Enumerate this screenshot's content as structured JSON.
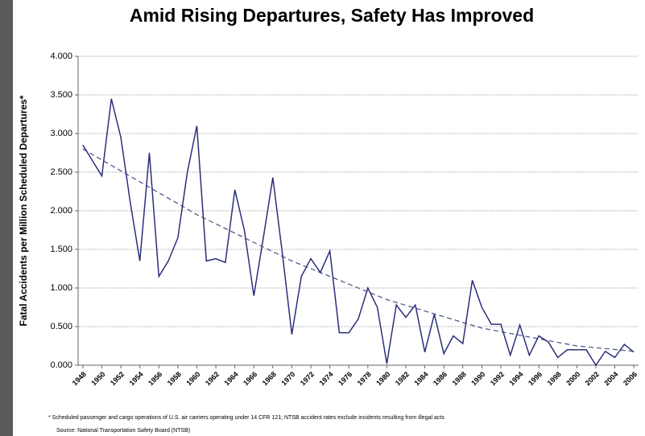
{
  "chart_data": {
    "type": "line",
    "title": "Amid Rising Departures, Safety Has Improved",
    "y_label": "Fatal Accidents per Million Scheduled Departures*",
    "footnote": "* Scheduled passenger and cargo operations of U.S. air carriers operating under 14 CFR 121; NTSB accident rates exclude incidents resulting from illegal acts",
    "source": "Source: National Transportation Safety Board (NTSB)",
    "x": [
      1948,
      1949,
      1950,
      1951,
      1952,
      1953,
      1954,
      1955,
      1956,
      1957,
      1958,
      1959,
      1960,
      1961,
      1962,
      1963,
      1964,
      1965,
      1966,
      1967,
      1968,
      1969,
      1970,
      1971,
      1972,
      1973,
      1974,
      1975,
      1976,
      1977,
      1978,
      1979,
      1980,
      1981,
      1982,
      1983,
      1984,
      1985,
      1986,
      1987,
      1988,
      1989,
      1990,
      1991,
      1992,
      1993,
      1994,
      1995,
      1996,
      1997,
      1998,
      1999,
      2000,
      2001,
      2002,
      2003,
      2004,
      2005,
      2006
    ],
    "series": [
      {
        "color": "#2b2f7a",
        "values": [
          2.85,
          2.65,
          2.45,
          3.45,
          2.95,
          2.1,
          1.35,
          2.75,
          1.15,
          1.35,
          1.65,
          2.5,
          3.1,
          1.35,
          1.38,
          1.33,
          2.27,
          1.75,
          0.9,
          1.65,
          2.43,
          1.45,
          0.4,
          1.15,
          1.38,
          1.2,
          1.48,
          0.42,
          0.42,
          0.6,
          1.0,
          0.75,
          0.02,
          0.78,
          0.62,
          0.78,
          0.17,
          0.66,
          0.15,
          0.38,
          0.28,
          1.1,
          0.75,
          0.53,
          0.53,
          0.13,
          0.52,
          0.13,
          0.38,
          0.3,
          0.1,
          0.2,
          0.2,
          0.2,
          0.0,
          0.18,
          0.1,
          0.27,
          0.17
        ]
      }
    ],
    "trendline": {
      "color": "#555a8a",
      "x": [
        1948,
        1960,
        1970,
        1980,
        1990,
        2000,
        2006
      ],
      "values": [
        2.8,
        1.95,
        1.35,
        0.85,
        0.48,
        0.25,
        0.18
      ]
    },
    "xlim": [
      1947.5,
      2006.5
    ],
    "xticks": [
      1948,
      1950,
      1952,
      1954,
      1956,
      1958,
      1960,
      1962,
      1964,
      1966,
      1968,
      1970,
      1972,
      1974,
      1976,
      1978,
      1980,
      1982,
      1984,
      1986,
      1988,
      1990,
      1992,
      1994,
      1996,
      1998,
      2000,
      2002,
      2004,
      2006
    ],
    "ylim": [
      0,
      4
    ],
    "yticks": [
      {
        "value": 0,
        "label": "0.000"
      },
      {
        "value": 0.5,
        "label": "0.500"
      },
      {
        "value": 1,
        "label": "1.000"
      },
      {
        "value": 1.5,
        "label": "1.500"
      },
      {
        "value": 2,
        "label": "2.000"
      },
      {
        "value": 2.5,
        "label": "2.500"
      },
      {
        "value": 3,
        "label": "3.000"
      },
      {
        "value": 3.5,
        "label": "3.500"
      },
      {
        "value": 4,
        "label": "4.000"
      }
    ],
    "grid": true
  }
}
